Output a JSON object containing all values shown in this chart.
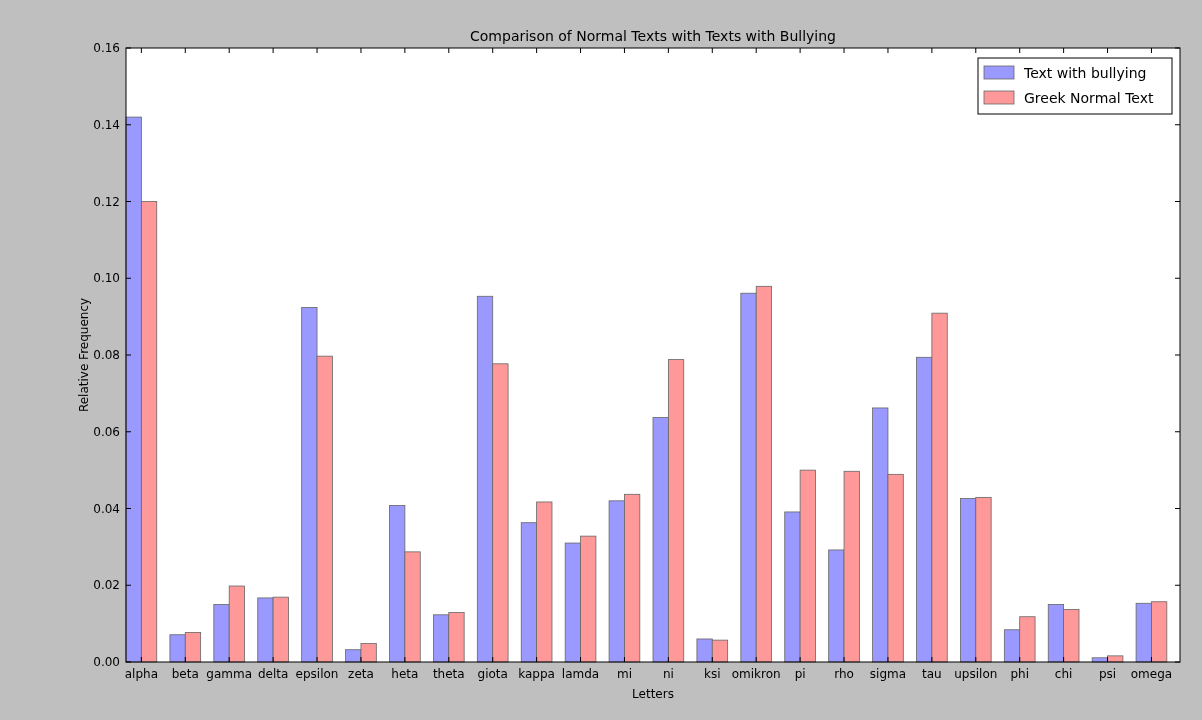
{
  "chart_data": {
    "type": "bar",
    "title": "Comparison of Normal Texts with Texts with Bullying",
    "xlabel": "Letters",
    "ylabel": "Relative Frequency",
    "categories": [
      "alpha",
      "beta",
      "gamma",
      "delta",
      "epsilon",
      "zeta",
      "heta",
      "theta",
      "giota",
      "kappa",
      "lamda",
      "mi",
      "ni",
      "ksi",
      "omikron",
      "pi",
      "rho",
      "sigma",
      "tau",
      "upsilon",
      "phi",
      "chi",
      "psi",
      "omega"
    ],
    "series": [
      {
        "name": "Text with bullying",
        "color": "#9999ff",
        "values": [
          0.142,
          0.0071,
          0.015,
          0.0167,
          0.0924,
          0.0032,
          0.0408,
          0.0123,
          0.0953,
          0.0363,
          0.031,
          0.042,
          0.0637,
          0.006,
          0.0961,
          0.0391,
          0.0292,
          0.0662,
          0.0794,
          0.0426,
          0.0084,
          0.015,
          0.0011,
          0.0153
        ]
      },
      {
        "name": "Greek Normal Text",
        "color": "#ff9999",
        "values": [
          0.12,
          0.0077,
          0.0198,
          0.0169,
          0.0797,
          0.0048,
          0.0287,
          0.0129,
          0.0777,
          0.0417,
          0.0328,
          0.0437,
          0.0788,
          0.0057,
          0.0979,
          0.05,
          0.0497,
          0.0489,
          0.0909,
          0.0429,
          0.0118,
          0.0137,
          0.0016,
          0.0157
        ]
      }
    ],
    "ylim": [
      0,
      0.16
    ],
    "yticks": [
      {
        "value": 0,
        "label": "0.00"
      },
      {
        "value": 0.02,
        "label": "0.02"
      },
      {
        "value": 0.04,
        "label": "0.04"
      },
      {
        "value": 0.06,
        "label": "0.06"
      },
      {
        "value": 0.08,
        "label": "0.08"
      },
      {
        "value": 0.1,
        "label": "0.10"
      },
      {
        "value": 0.12,
        "label": "0.12"
      },
      {
        "value": 0.14,
        "label": "0.14"
      },
      {
        "value": 0.16,
        "label": "0.16"
      }
    ],
    "grid": false,
    "legend": "top right"
  }
}
